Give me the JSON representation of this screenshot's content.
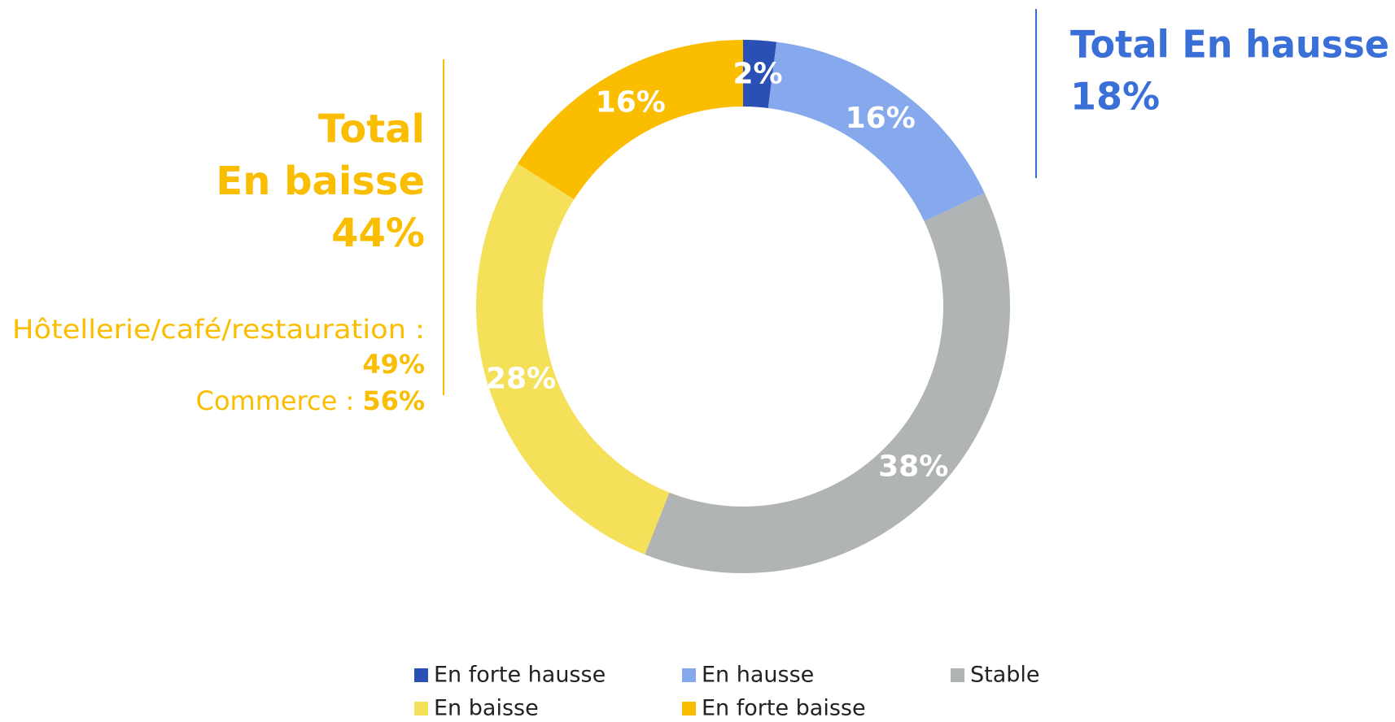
{
  "chart_data": {
    "type": "donut",
    "categories": [
      "En forte hausse",
      "En hausse",
      "Stable",
      "En baisse",
      "En forte baisse"
    ],
    "values": [
      2,
      16,
      38,
      28,
      16
    ],
    "value_labels": [
      "2%",
      "16%",
      "38%",
      "28%",
      "16%"
    ],
    "colors": [
      "#2a4fb5",
      "#86a8ec",
      "#b1b4b4",
      "#f5e05a",
      "#fbbd00"
    ],
    "annotations": {
      "hausse": {
        "title": "Total En hausse",
        "value": "18%"
      },
      "baisse": {
        "title_1": "Total",
        "title_2": "En baisse",
        "value": "44%",
        "detail_1": "Hôtellerie/café/restauration :",
        "detail_1_value": "49%",
        "detail_2": "Commerce : ",
        "detail_2_value": "56%"
      }
    }
  }
}
